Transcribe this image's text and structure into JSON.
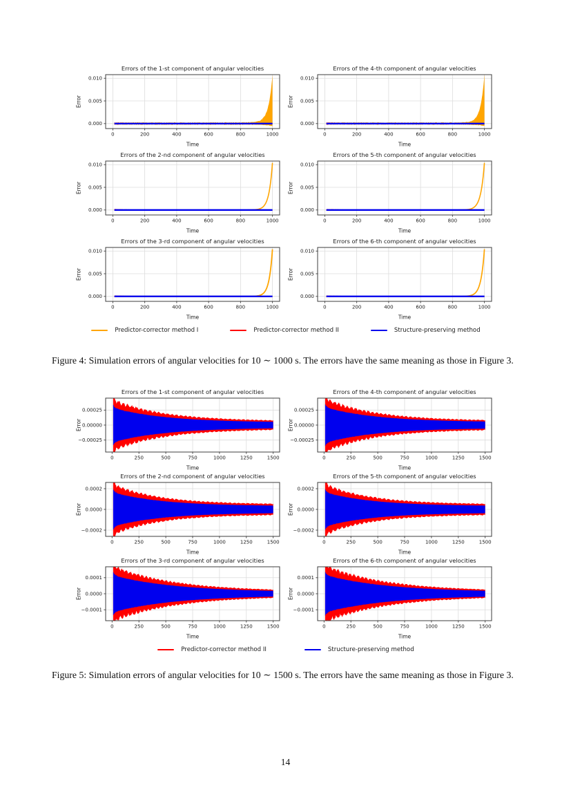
{
  "page": {
    "number": "14"
  },
  "figures": [
    {
      "label": "Figure 4",
      "caption": "Figure 4: Simulation errors of angular velocities for 10 ∼ 1000 s. The errors have the same meaning as those in Figure 3.",
      "legend": [
        {
          "name": "pc1",
          "label": "Predictor-corrector method I",
          "color": "#FFA500"
        },
        {
          "name": "pc2",
          "label": "Predictor-corrector method II",
          "color": "#FF0000"
        },
        {
          "name": "sp",
          "label": "Structure-preserving method",
          "color": "#0000EE"
        }
      ],
      "chart_data": {
        "type": "line",
        "xlabel": "Time",
        "ylabel": "Error",
        "x_data_range": [
          10,
          1000
        ],
        "grid": true,
        "subplots": [
          {
            "title": "Errors of the 1-st component of angular velocities",
            "xlim": [
              -45,
              1045
            ],
            "ylim": [
              -0.0011,
              0.0108
            ],
            "xticks": [
              0,
              200,
              400,
              600,
              800,
              1000
            ],
            "yticks": [
              {
                "v": 0.0,
                "label": "0.000"
              },
              {
                "v": 0.005,
                "label": "0.005"
              },
              {
                "v": 0.01,
                "label": "0.010"
              }
            ],
            "series": [
              {
                "name": "pc1",
                "kind": "band",
                "color": "#FFA500",
                "noise": 0.00032,
                "dip": 0.00034,
                "blow": 0.0105,
                "tau": 0.025
              },
              {
                "name": "pc2",
                "kind": "redband",
                "color": "#FF0000",
                "base": 8e-05,
                "extra": 0.0002
              },
              {
                "name": "sp",
                "kind": "flat",
                "color": "#0000EE",
                "y": 0,
                "lw": 2.3
              }
            ]
          },
          {
            "title": "Errors of the 4-th component of angular velocities",
            "xlim": [
              -45,
              1045
            ],
            "ylim": [
              -0.0011,
              0.0108
            ],
            "xticks": [
              0,
              200,
              400,
              600,
              800,
              1000
            ],
            "yticks": [
              {
                "v": 0.0,
                "label": "0.000"
              },
              {
                "v": 0.005,
                "label": "0.005"
              },
              {
                "v": 0.01,
                "label": "0.010"
              }
            ],
            "series": [
              {
                "name": "pc1",
                "kind": "band",
                "color": "#FFA500",
                "noise": 0.0003,
                "dip": 0.00032,
                "blow": 0.0106,
                "tau": 0.024
              },
              {
                "name": "pc2",
                "kind": "redband",
                "color": "#FF0000",
                "base": 8e-05,
                "extra": 0.0002
              },
              {
                "name": "sp",
                "kind": "flat",
                "color": "#0000EE",
                "y": 0,
                "lw": 2.3
              }
            ]
          },
          {
            "title": "Errors of the 2-nd component of angular velocities",
            "xlim": [
              -45,
              1045
            ],
            "ylim": [
              -0.0011,
              0.0108
            ],
            "xticks": [
              0,
              200,
              400,
              600,
              800,
              1000
            ],
            "yticks": [
              {
                "v": 0.0,
                "label": "0.000"
              },
              {
                "v": 0.005,
                "label": "0.005"
              },
              {
                "v": 0.01,
                "label": "0.010"
              }
            ],
            "series": [
              {
                "name": "pc1",
                "kind": "blowline",
                "color": "#FFA500",
                "blow": 0.0104,
                "tau": 0.022,
                "lw": 1.6
              },
              {
                "name": "pc2",
                "kind": "redband",
                "color": "#FF0000",
                "base": 7e-05,
                "extra": 0.00016
              },
              {
                "name": "sp",
                "kind": "flat",
                "color": "#0000EE",
                "y": 0,
                "lw": 2.3
              }
            ]
          },
          {
            "title": "Errors of the 5-th component of angular velocities",
            "xlim": [
              -45,
              1045
            ],
            "ylim": [
              -0.0011,
              0.0108
            ],
            "xticks": [
              0,
              200,
              400,
              600,
              800,
              1000
            ],
            "yticks": [
              {
                "v": 0.0,
                "label": "0.000"
              },
              {
                "v": 0.005,
                "label": "0.005"
              },
              {
                "v": 0.01,
                "label": "0.010"
              }
            ],
            "series": [
              {
                "name": "pc1",
                "kind": "blowline",
                "color": "#FFA500",
                "blow": 0.0104,
                "tau": 0.023,
                "lw": 1.6
              },
              {
                "name": "pc2",
                "kind": "redband",
                "color": "#FF0000",
                "base": 7e-05,
                "extra": 0.00016
              },
              {
                "name": "sp",
                "kind": "flat",
                "color": "#0000EE",
                "y": 0,
                "lw": 2.3
              }
            ]
          },
          {
            "title": "Errors of the 3-rd component of angular velocities",
            "xlim": [
              -45,
              1045
            ],
            "ylim": [
              -0.0011,
              0.0108
            ],
            "xticks": [
              0,
              200,
              400,
              600,
              800,
              1000
            ],
            "yticks": [
              {
                "v": 0.0,
                "label": "0.000"
              },
              {
                "v": 0.005,
                "label": "0.005"
              },
              {
                "v": 0.01,
                "label": "0.010"
              }
            ],
            "series": [
              {
                "name": "pc1",
                "kind": "blowline",
                "color": "#FFA500",
                "blow": 0.0104,
                "tau": 0.021,
                "lw": 1.8
              },
              {
                "name": "pc2",
                "kind": "redband",
                "color": "#FF0000",
                "base": 7e-05,
                "extra": 0.00016
              },
              {
                "name": "sp",
                "kind": "flat",
                "color": "#0000EE",
                "y": 0,
                "lw": 2.3
              }
            ]
          },
          {
            "title": "Errors of the 6-th component of angular velocities",
            "xlim": [
              -45,
              1045
            ],
            "ylim": [
              -0.0011,
              0.0108
            ],
            "xticks": [
              0,
              200,
              400,
              600,
              800,
              1000
            ],
            "yticks": [
              {
                "v": 0.0,
                "label": "0.000"
              },
              {
                "v": 0.005,
                "label": "0.005"
              },
              {
                "v": 0.01,
                "label": "0.010"
              }
            ],
            "series": [
              {
                "name": "pc1",
                "kind": "blowline",
                "color": "#FFA500",
                "blow": 0.0104,
                "tau": 0.022,
                "lw": 1.7
              },
              {
                "name": "pc2",
                "kind": "redband",
                "color": "#FF0000",
                "base": 7e-05,
                "extra": 0.00016
              },
              {
                "name": "sp",
                "kind": "flat",
                "color": "#0000EE",
                "y": 0,
                "lw": 2.3
              }
            ]
          }
        ]
      }
    },
    {
      "label": "Figure 5",
      "caption": "Figure 5: Simulation errors of angular velocities for 10 ∼ 1500 s. The errors have the same meaning as those in Figure 3.",
      "legend": [
        {
          "name": "pc2",
          "label": "Predictor-corrector method II",
          "color": "#FF0000"
        },
        {
          "name": "sp",
          "label": "Structure-preserving method",
          "color": "#0000EE"
        }
      ],
      "chart_data": {
        "type": "line",
        "xlabel": "Time",
        "ylabel": "Error",
        "x_data_range": [
          10,
          1500
        ],
        "grid": true,
        "subplots": [
          {
            "title": "Errors of the 1-st component of angular velocities",
            "xlim": [
              -60,
              1560
            ],
            "ylim": [
              -0.00045,
              0.00045
            ],
            "xticks": [
              0,
              250,
              500,
              750,
              1000,
              1250,
              1500
            ],
            "yticks": [
              {
                "v": 0.00025,
                "label": "0.00025"
              },
              {
                "v": 0.0,
                "label": "0.00000"
              },
              {
                "v": -0.00025,
                "label": "−0.00025"
              }
            ],
            "series": [
              {
                "name": "pc2",
                "kind": "env",
                "color": "#FF0000",
                "a0": 0.00036,
                "aEnd": 5.5e-05,
                "decay": 3.1,
                "ripple": 0.16,
                "nrip": 36
              },
              {
                "name": "sp",
                "kind": "env",
                "color": "#0000EE",
                "a0": 0.00027,
                "aEnd": 4e-05,
                "decay": 3.0,
                "ripple": 0.06,
                "nrip": 110
              }
            ]
          },
          {
            "title": "Errors of the 4-th component of angular velocities",
            "xlim": [
              -60,
              1560
            ],
            "ylim": [
              -0.00045,
              0.00045
            ],
            "xticks": [
              0,
              250,
              500,
              750,
              1000,
              1250,
              1500
            ],
            "yticks": [
              {
                "v": 0.00025,
                "label": "0.00025"
              },
              {
                "v": 0.0,
                "label": "0.00000"
              },
              {
                "v": -0.00025,
                "label": "−0.00025"
              }
            ],
            "series": [
              {
                "name": "pc2",
                "kind": "env",
                "color": "#FF0000",
                "a0": 0.00038,
                "aEnd": 6e-05,
                "decay": 3.2,
                "ripple": 0.16,
                "nrip": 38
              },
              {
                "name": "sp",
                "kind": "env",
                "color": "#0000EE",
                "a0": 0.00028,
                "aEnd": 4.5e-05,
                "decay": 3.0,
                "ripple": 0.06,
                "nrip": 110
              }
            ]
          },
          {
            "title": "Errors of the 2-nd component of angular velocities",
            "xlim": [
              -60,
              1560
            ],
            "ylim": [
              -0.00026,
              0.00026
            ],
            "xticks": [
              0,
              250,
              500,
              750,
              1000,
              1250,
              1500
            ],
            "yticks": [
              {
                "v": 0.0002,
                "label": "0.0002"
              },
              {
                "v": 0.0,
                "label": "0.0000"
              },
              {
                "v": -0.0002,
                "label": "−0.0002"
              }
            ],
            "series": [
              {
                "name": "pc2",
                "kind": "env",
                "color": "#FF0000",
                "a0": 0.00021,
                "aEnd": 4.2e-05,
                "decay": 3.4,
                "ripple": 0.14,
                "nrip": 36
              },
              {
                "name": "sp",
                "kind": "env",
                "color": "#0000EE",
                "a0": 0.000155,
                "aEnd": 3e-05,
                "decay": 3.2,
                "ripple": 0.06,
                "nrip": 110
              }
            ]
          },
          {
            "title": "Errors of the 5-th component of angular velocities",
            "xlim": [
              -60,
              1560
            ],
            "ylim": [
              -0.00026,
              0.00026
            ],
            "xticks": [
              0,
              250,
              500,
              750,
              1000,
              1250,
              1500
            ],
            "yticks": [
              {
                "v": 0.0002,
                "label": "0.0002"
              },
              {
                "v": 0.0,
                "label": "0.0000"
              },
              {
                "v": -0.0002,
                "label": "−0.0002"
              }
            ],
            "series": [
              {
                "name": "pc2",
                "kind": "env",
                "color": "#FF0000",
                "a0": 0.00021,
                "aEnd": 4.2e-05,
                "decay": 3.4,
                "ripple": 0.14,
                "nrip": 36
              },
              {
                "name": "sp",
                "kind": "env",
                "color": "#0000EE",
                "a0": 0.000155,
                "aEnd": 3e-05,
                "decay": 3.2,
                "ripple": 0.06,
                "nrip": 110
              }
            ]
          },
          {
            "title": "Errors of the 3-rd component of angular velocities",
            "xlim": [
              -60,
              1560
            ],
            "ylim": [
              -0.000168,
              0.000168
            ],
            "xticks": [
              0,
              250,
              500,
              750,
              1000,
              1250,
              1500
            ],
            "yticks": [
              {
                "v": 0.0001,
                "label": "0.0001"
              },
              {
                "v": 0.0,
                "label": "0.0000"
              },
              {
                "v": -0.0001,
                "label": "−0.0001"
              }
            ],
            "series": [
              {
                "name": "pc2",
                "kind": "env",
                "color": "#FF0000",
                "a0": 0.000148,
                "aEnd": 1.25e-05,
                "decay": 2.6,
                "ripple": 0.15,
                "nrip": 40
              },
              {
                "name": "sp",
                "kind": "env",
                "color": "#0000EE",
                "a0": 0.000108,
                "aEnd": 9e-06,
                "decay": 2.5,
                "ripple": 0.06,
                "nrip": 120
              }
            ]
          },
          {
            "title": "Errors of the 6-th component of angular velocities",
            "xlim": [
              -60,
              1560
            ],
            "ylim": [
              -0.000168,
              0.000168
            ],
            "xticks": [
              0,
              250,
              500,
              750,
              1000,
              1250,
              1500
            ],
            "yticks": [
              {
                "v": 0.0001,
                "label": "0.0001"
              },
              {
                "v": 0.0,
                "label": "0.0000"
              },
              {
                "v": -0.0001,
                "label": "−0.0001"
              }
            ],
            "series": [
              {
                "name": "pc2",
                "kind": "env",
                "color": "#FF0000",
                "a0": 0.000152,
                "aEnd": 1.3e-05,
                "decay": 2.6,
                "ripple": 0.15,
                "nrip": 40
              },
              {
                "name": "sp",
                "kind": "env",
                "color": "#0000EE",
                "a0": 0.00011,
                "aEnd": 9.5e-06,
                "decay": 2.5,
                "ripple": 0.06,
                "nrip": 120
              }
            ]
          }
        ]
      }
    }
  ],
  "style": {
    "grid_color": "#DCDCDC",
    "spine_color": "#3c3c3c",
    "tick_color": "#1a1a1a"
  }
}
